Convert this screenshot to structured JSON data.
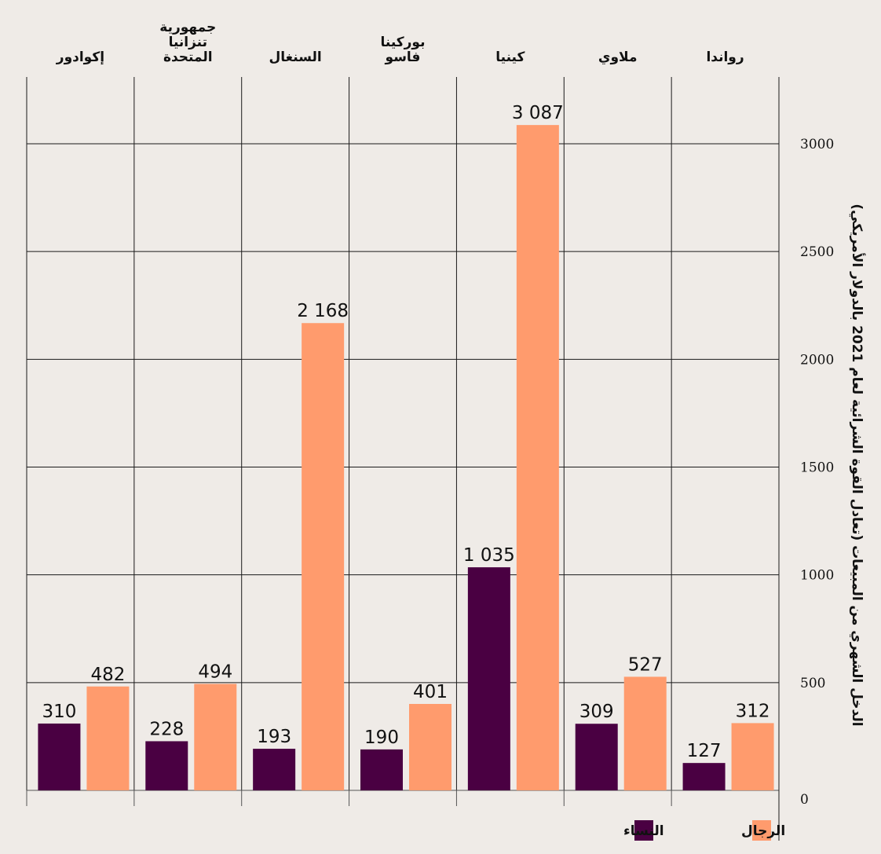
{
  "chart_data": {
    "type": "bar",
    "categories": [
      "رواندا",
      "ملاوي",
      "كينيا",
      "بوركينا فاسو",
      "السنغال",
      "جمهورية تنزانيا المتحدة",
      "إكوادور"
    ],
    "category_lines": [
      [
        "رواندا"
      ],
      [
        "ملاوي"
      ],
      [
        "كينيا"
      ],
      [
        "بوركينا",
        "فاسو"
      ],
      [
        "السنغال"
      ],
      [
        "جمهورية",
        "تنزانيا",
        "المتحدة"
      ],
      [
        "إكوادور"
      ]
    ],
    "series": [
      {
        "name": "النساء",
        "color": "#4a0042",
        "values": [
          127,
          309,
          1035,
          190,
          193,
          228,
          310
        ],
        "labels": [
          "127",
          "309",
          "1 035",
          "190",
          "193",
          "228",
          "310"
        ]
      },
      {
        "name": "الرجال",
        "color": "#ff9b6d",
        "values": [
          312,
          527,
          3087,
          401,
          2168,
          494,
          482
        ],
        "labels": [
          "312",
          "527",
          "3 087",
          "401",
          "2 168",
          "494",
          "482"
        ]
      }
    ],
    "ylabel": "الدخل الشهري من المبيعات (تعادل القوة الشرائية لعام 2021 بالدولار الأمريكي)",
    "ylim": [
      0,
      3000
    ],
    "yticks": [
      0,
      500,
      1000,
      1500,
      2000,
      2500,
      3000
    ],
    "y_axis_side": "right",
    "grid": true,
    "legend_position": "bottom-right"
  }
}
